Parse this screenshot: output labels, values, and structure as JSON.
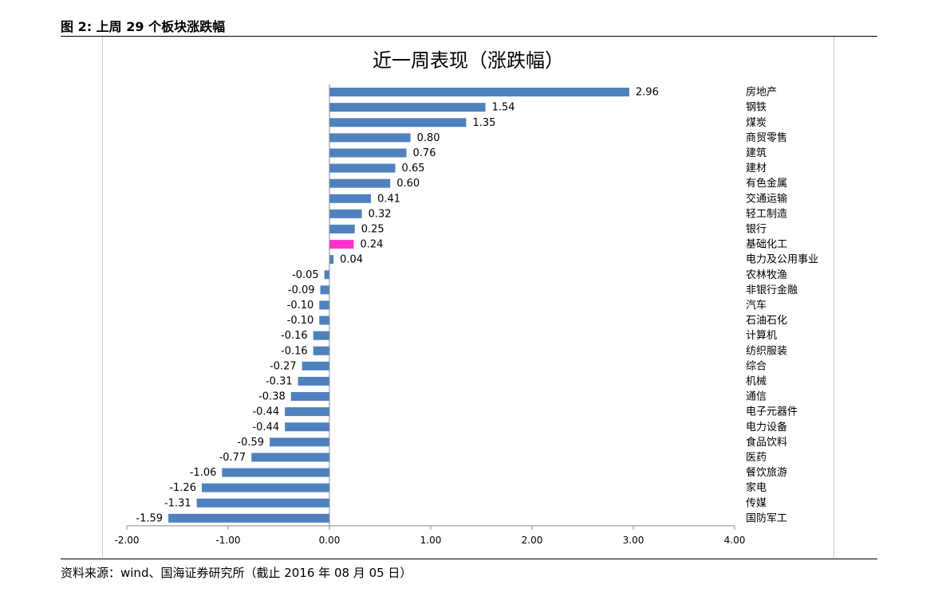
{
  "caption": "图 2:  上周 29 个板块涨跌幅",
  "source": "资料来源：wind、国海证券研究所（截止 2016 年 08 月 05 日）",
  "colors": {
    "bar": "#4f81bd",
    "highlight": "#ff33cc"
  },
  "chart_data": {
    "type": "bar",
    "orientation": "horizontal",
    "title": "近一周表现（涨跌幅）",
    "xlabel": "",
    "ylabel": "",
    "xlim": [
      -2.0,
      4.0
    ],
    "xticks": [
      "-2.00",
      "-1.00",
      "0.00",
      "1.00",
      "2.00",
      "3.00",
      "4.00"
    ],
    "grid": false,
    "highlight_category": "基础化工",
    "categories": [
      "房地产",
      "钢铁",
      "煤炭",
      "商贸零售",
      "建筑",
      "建材",
      "有色金属",
      "交通运输",
      "轻工制造",
      "银行",
      "基础化工",
      "电力及公用事业",
      "农林牧渔",
      "非银行金融",
      "汽车",
      "石油石化",
      "计算机",
      "纺织服装",
      "综合",
      "机械",
      "通信",
      "电子元器件",
      "电力设备",
      "食品饮料",
      "医药",
      "餐饮旅游",
      "家电",
      "传媒",
      "国防军工"
    ],
    "values": [
      2.96,
      1.54,
      1.35,
      0.8,
      0.76,
      0.65,
      0.6,
      0.41,
      0.32,
      0.25,
      0.24,
      0.04,
      -0.05,
      -0.09,
      -0.1,
      -0.1,
      -0.16,
      -0.16,
      -0.27,
      -0.31,
      -0.38,
      -0.44,
      -0.44,
      -0.59,
      -0.77,
      -1.06,
      -1.26,
      -1.31,
      -1.59
    ],
    "value_labels": [
      "2.96",
      "1.54",
      "1.35",
      "0.80",
      "0.76",
      "0.65",
      "0.60",
      "0.41",
      "0.32",
      "0.25",
      "0.24",
      "0.04",
      "-0.05",
      "-0.09",
      "-0.10",
      "-0.10",
      "-0.16",
      "-0.16",
      "-0.27",
      "-0.31",
      "-0.38",
      "-0.44",
      "-0.44",
      "-0.59",
      "-0.77",
      "-1.06",
      "-1.26",
      "-1.31",
      "-1.59"
    ]
  }
}
